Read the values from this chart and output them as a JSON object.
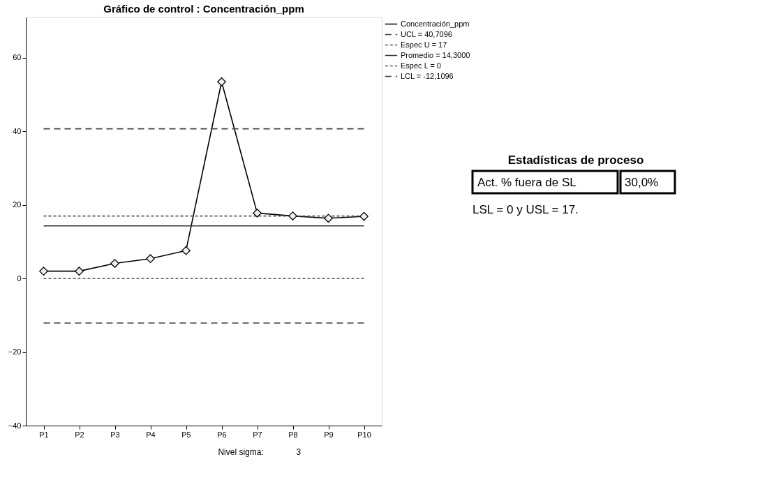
{
  "chart_data": {
    "type": "line",
    "title": "Gráfico de control : Concentración_ppm",
    "categories": [
      "P1",
      "P2",
      "P3",
      "P4",
      "P5",
      "P6",
      "P7",
      "P8",
      "P9",
      "P10"
    ],
    "series": [
      {
        "name": "Concentración_ppm",
        "color": "#000000",
        "values": [
          2.0,
          2.0,
          4.1,
          5.4,
          7.6,
          53.5,
          17.8,
          17.0,
          16.4,
          16.9
        ]
      }
    ],
    "ref_lines": [
      {
        "axis": "y",
        "value": 40.7096,
        "label": "UCL = 40,7096",
        "color": "#404040",
        "line_style": "dashed"
      },
      {
        "axis": "y",
        "value": 17,
        "label": "Espec U = 17",
        "color": "#595959",
        "line_style": "dotted"
      },
      {
        "axis": "y",
        "value": 14.3,
        "label": "Promedio = 14,3000",
        "color": "#333333",
        "line_style": "solid"
      },
      {
        "axis": "y",
        "value": 0,
        "label": "Espec L = 0",
        "color": "#595959",
        "line_style": "dotted"
      },
      {
        "axis": "y",
        "value": -12.1096,
        "label": "LCL = -12,1096",
        "color": "#404040",
        "line_style": "dashed"
      }
    ],
    "ylim": [
      -40,
      71
    ],
    "yticks": [
      -40,
      -20,
      0,
      20,
      40,
      60
    ],
    "marker": "diamond",
    "line_style": "solid",
    "grid": false,
    "legend": "top right",
    "annotations": [
      "Estadísticas de proceso",
      "Act. % fuera de SL",
      "30,0%",
      "LSL = 0 y USL = 17.",
      "Nivel sigma:",
      "3"
    ]
  }
}
